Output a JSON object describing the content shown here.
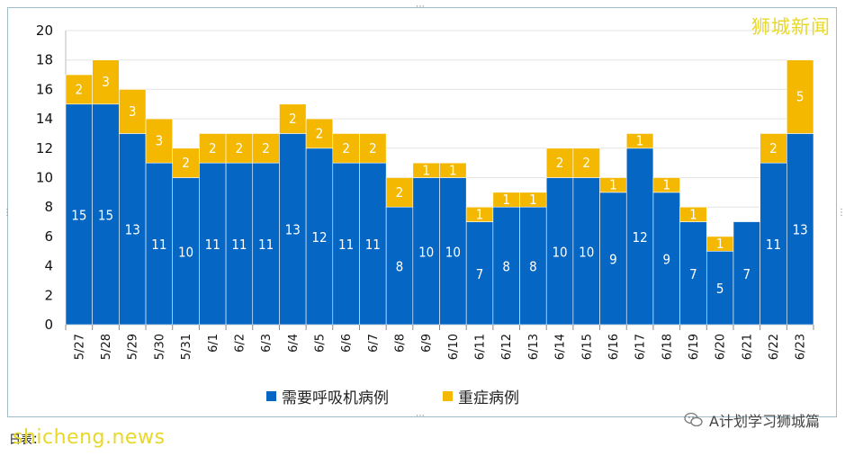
{
  "watermark": "狮城新闻",
  "site": "shicheng.news",
  "account": "A计划学习狮城篇",
  "footer_prefix": "日表：",
  "colors": {
    "ventilator": "#0566c4",
    "severe": "#f5b800"
  },
  "chart_data": {
    "type": "bar",
    "stacked": true,
    "categories": [
      "5/27",
      "5/28",
      "5/29",
      "5/30",
      "5/31",
      "6/1",
      "6/2",
      "6/3",
      "6/4",
      "6/5",
      "6/6",
      "6/7",
      "6/8",
      "6/9",
      "6/10",
      "6/11",
      "6/12",
      "6/13",
      "6/14",
      "6/15",
      "6/16",
      "6/17",
      "6/18",
      "6/19",
      "6/20",
      "6/21",
      "6/22",
      "6/23"
    ],
    "series": [
      {
        "name": "需要呼吸机病例",
        "values": [
          15,
          15,
          13,
          11,
          10,
          11,
          11,
          11,
          13,
          12,
          11,
          11,
          8,
          10,
          10,
          7,
          8,
          8,
          10,
          10,
          9,
          12,
          9,
          7,
          5,
          7,
          11,
          13
        ]
      },
      {
        "name": "重症病例",
        "values": [
          2,
          3,
          3,
          3,
          2,
          2,
          2,
          2,
          2,
          2,
          2,
          2,
          2,
          1,
          1,
          1,
          1,
          1,
          2,
          2,
          1,
          1,
          1,
          1,
          1,
          0,
          2,
          5
        ]
      }
    ],
    "ylim": [
      0,
      20
    ],
    "yticks": [
      0,
      2,
      4,
      6,
      8,
      10,
      12,
      14,
      16,
      18,
      20
    ],
    "grid": true,
    "legend": "bottom"
  }
}
